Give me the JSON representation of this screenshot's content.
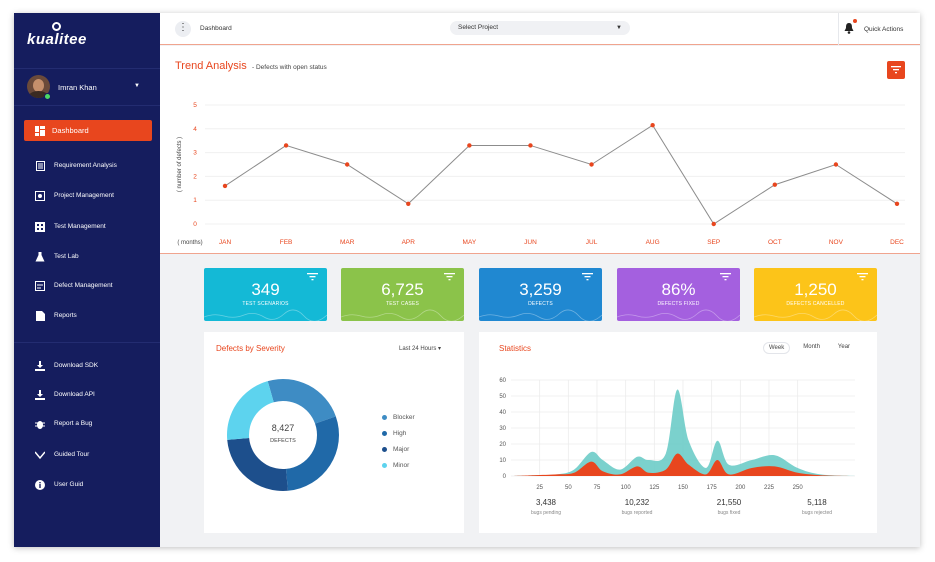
{
  "app": {
    "logo_text": "kualitee"
  },
  "user": {
    "name": "Imran Khan"
  },
  "sidebar": {
    "items": [
      {
        "label": "Dashboard",
        "icon": "dashboard-icon",
        "active": true
      },
      {
        "label": "Requirement Analysis",
        "icon": "requirements-icon"
      },
      {
        "label": "Project Management",
        "icon": "project-icon"
      },
      {
        "label": "Test Management",
        "icon": "test-management-icon"
      },
      {
        "label": "Test Lab",
        "icon": "flask-icon"
      },
      {
        "label": "Defect Management",
        "icon": "defect-icon"
      },
      {
        "label": "Reports",
        "icon": "reports-icon"
      },
      {
        "label": "Download SDK",
        "icon": "download-icon"
      },
      {
        "label": "Download API",
        "icon": "download-icon"
      },
      {
        "label": "Report a Bug",
        "icon": "bug-icon"
      },
      {
        "label": "Guided Tour",
        "icon": "guided-tour-icon"
      },
      {
        "label": "User Guid",
        "icon": "info-icon"
      }
    ]
  },
  "topbar": {
    "breadcrumb": "Dashboard",
    "project_select": "Select Project",
    "quick_actions": "Quick Actions"
  },
  "trend": {
    "title": "Trend Analysis",
    "subtitle": "- Defects with open status"
  },
  "chart_data": [
    {
      "type": "line",
      "title": "Trend Analysis",
      "ylabel": "( number of defects )",
      "xlabel": "( months)",
      "categories": [
        "JAN",
        "FEB",
        "MAR",
        "APR",
        "MAY",
        "JUN",
        "JUL",
        "AUG",
        "SEP",
        "OCT",
        "NOV",
        "DEC"
      ],
      "values": [
        1.6,
        3.3,
        2.5,
        0.85,
        3.3,
        3.3,
        2.5,
        4.15,
        0.0,
        1.65,
        2.5,
        0.85
      ],
      "ylim": [
        0,
        5
      ],
      "yticks": [
        0,
        1,
        2,
        3,
        4,
        5
      ],
      "grid": true
    },
    {
      "type": "pie",
      "title": "Defects by Severity",
      "center_value": "8,427",
      "center_label": "DEFECTS",
      "categories": [
        "Blocker",
        "High",
        "Major",
        "Minor"
      ],
      "values": [
        24,
        29,
        25,
        22
      ],
      "colors": [
        "#3e8cc4",
        "#2069a8",
        "#1d4f8c",
        "#5dd3ee"
      ]
    },
    {
      "type": "area",
      "title": "Statistics",
      "xticks": [
        25,
        50,
        75,
        100,
        125,
        150,
        175,
        200,
        225,
        250
      ],
      "yticks": [
        0,
        10,
        20,
        30,
        40,
        50,
        60
      ],
      "xlim": [
        0,
        300
      ],
      "ylim": [
        0,
        60
      ],
      "series": [
        {
          "x": [
            0,
            20,
            40,
            55,
            70,
            80,
            95,
            110,
            120,
            135,
            145,
            155,
            170,
            180,
            190,
            210,
            230,
            250,
            270,
            300
          ],
          "values": [
            0,
            0.5,
            1,
            4,
            15,
            10,
            4,
            12,
            10,
            14,
            54,
            22,
            5,
            22,
            7,
            10,
            13,
            5,
            1,
            0
          ]
        },
        {
          "x": [
            0,
            20,
            40,
            55,
            70,
            80,
            95,
            110,
            120,
            135,
            145,
            155,
            170,
            180,
            190,
            210,
            230,
            250,
            270,
            300
          ],
          "values": [
            0,
            0.5,
            1,
            2,
            9,
            3,
            1,
            6,
            2,
            4,
            14,
            7,
            1,
            10,
            1,
            5,
            6,
            2,
            0.5,
            0
          ]
        }
      ],
      "colors": [
        "#6dccc8",
        "#e8461e"
      ]
    }
  ],
  "cards": [
    {
      "value": "349",
      "label": "TEST SCENARIOS",
      "color": "#14b9d6"
    },
    {
      "value": "6,725",
      "label": "TEST CASES",
      "color": "#8bc34a"
    },
    {
      "value": "3,259",
      "label": "DEFECTS",
      "color": "#2088d1"
    },
    {
      "value": "86%",
      "label": "DEFECTS FIXED",
      "color": "#a460df"
    },
    {
      "value": "1,250",
      "label": "DEFECTS CANCELLED",
      "color": "#fcc419"
    }
  ],
  "severity": {
    "title": "Defects by Severity",
    "period": "Last 24 Hours",
    "legend": [
      "Blocker",
      "High",
      "Major",
      "Minor"
    ]
  },
  "statistics": {
    "title": "Statistics",
    "tabs": [
      "Week",
      "Month",
      "Year"
    ],
    "active_tab": "Week",
    "stats": [
      {
        "value": "3,438",
        "label": "bugs pending"
      },
      {
        "value": "10,232",
        "label": "bugs reported"
      },
      {
        "value": "21,550",
        "label": "bugs fixed"
      },
      {
        "value": "5,118",
        "label": "bugs rejected"
      }
    ]
  },
  "colors": {
    "accent": "#e8461e",
    "sidebar": "#151d5e"
  }
}
